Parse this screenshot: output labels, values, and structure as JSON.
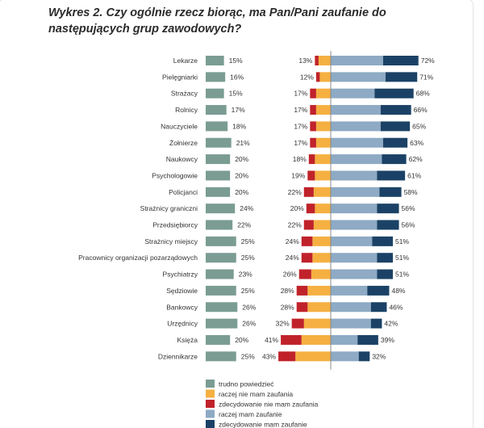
{
  "chart_data": {
    "type": "bar",
    "title": "Wykres 2. Czy ogólnie rzecz biorąc, ma Pan/Pani zaufanie do następujących grup zawodowych?",
    "categories": [
      "Lekarze",
      "Pielęgniarki",
      "Strażacy",
      "Rolnicy",
      "Nauczyciele",
      "Żołnierze",
      "Naukowcy",
      "Psychologowie",
      "Policjanci",
      "Strażnicy graniczni",
      "Przedsiębiorcy",
      "Strażnicy miejscy",
      "Pracownicy organizacji pozarządowych",
      "Psychiatrzy",
      "Sędziowie",
      "Bankowcy",
      "Urzędnicy",
      "Księża",
      "Dziennikarze"
    ],
    "series": [
      {
        "name": "trudno powiedzieć",
        "color": "#7a9c93",
        "values": [
          15,
          16,
          15,
          17,
          18,
          21,
          20,
          20,
          20,
          24,
          22,
          25,
          25,
          23,
          25,
          26,
          26,
          20,
          25
        ]
      },
      {
        "name": "raczej nie mam zaufania",
        "color": "#f5b041",
        "values": [
          10,
          9,
          12,
          12,
          12,
          12,
          13,
          13,
          14,
          13,
          14,
          15,
          15,
          16,
          19,
          19,
          22,
          24,
          29
        ]
      },
      {
        "name": "zdecydowanie nie mam zaufania",
        "color": "#c0222a",
        "values": [
          3,
          3,
          5,
          5,
          5,
          5,
          5,
          6,
          8,
          7,
          8,
          9,
          9,
          10,
          9,
          9,
          10,
          17,
          14
        ]
      },
      {
        "name": "raczej mam zaufanie",
        "color": "#8eaac4",
        "values": [
          43,
          45,
          36,
          41,
          41,
          43,
          42,
          38,
          40,
          38,
          38,
          34,
          38,
          38,
          30,
          33,
          33,
          22,
          23
        ]
      },
      {
        "name": "zdecydowanie mam zaufanie",
        "color": "#1b4266",
        "values": [
          29,
          26,
          32,
          25,
          24,
          20,
          20,
          23,
          18,
          18,
          18,
          17,
          13,
          13,
          18,
          13,
          9,
          17,
          9
        ]
      }
    ],
    "distrust_totals": [
      "13%",
      "12%",
      "17%",
      "17%",
      "17%",
      "17%",
      "18%",
      "19%",
      "22%",
      "20%",
      "22%",
      "24%",
      "24%",
      "26%",
      "28%",
      "28%",
      "32%",
      "41%",
      "43%"
    ],
    "trust_totals": [
      "72%",
      "71%",
      "68%",
      "66%",
      "65%",
      "63%",
      "62%",
      "61%",
      "58%",
      "56%",
      "56%",
      "51%",
      "51%",
      "51%",
      "48%",
      "46%",
      "42%",
      "39%",
      "32%"
    ],
    "dont_know_labels": [
      "15%",
      "16%",
      "15%",
      "17%",
      "18%",
      "21%",
      "20%",
      "20%",
      "20%",
      "24%",
      "22%",
      "25%",
      "25%",
      "23%",
      "25%",
      "26%",
      "26%",
      "20%",
      "25%"
    ],
    "legend": [
      "trudno powiedzieć",
      "raczej nie mam zaufania",
      "zdecydowanie nie mam zaufania",
      "raczej mam zaufanie",
      "zdecydowanie mam zaufanie"
    ],
    "legend_placement": "bottom"
  }
}
